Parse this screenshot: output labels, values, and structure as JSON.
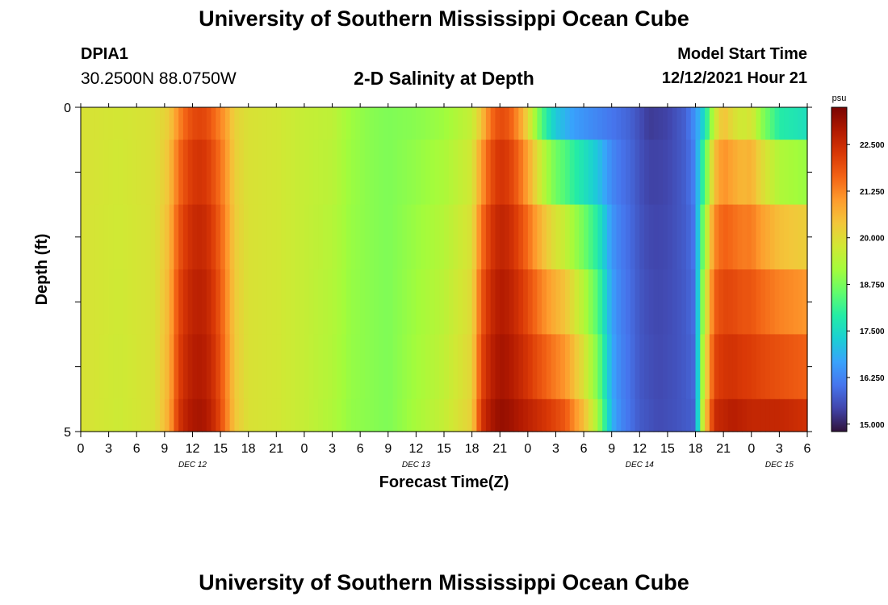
{
  "header": {
    "title": "University of Southern Mississippi Ocean Cube",
    "station_id": "DPIA1",
    "coords": "30.2500N  88.0750W",
    "plot_title": "2-D Salinity at Depth",
    "model_start_label": "Model Start Time",
    "model_start_value": "12/12/2021 Hour 21"
  },
  "footer": {
    "title": "University of Southern Mississippi Ocean Cube"
  },
  "colors": {
    "palette": [
      "#30123b",
      "#4145ab",
      "#4675ed",
      "#39a2fc",
      "#1bcfd4",
      "#24eca6",
      "#61fc6c",
      "#a4fc3b",
      "#d1e834",
      "#f3c63a",
      "#fe9b2d",
      "#f36315",
      "#d93806",
      "#b11901",
      "#7a0402"
    ]
  },
  "chart_data": {
    "type": "heatmap",
    "title": "2-D Salinity at Depth",
    "xlabel": "Forecast Time(Z)",
    "ylabel": "Depth (ft)",
    "colorbar_unit": "psu",
    "colorbar_range": [
      14.8,
      23.5
    ],
    "colorbar_ticks": [
      "22.500",
      "21.250",
      "20.000",
      "18.750",
      "17.500",
      "16.250",
      "15.000"
    ],
    "colorbar_tick_values": [
      22.5,
      21.25,
      20.0,
      18.75,
      17.5,
      16.25,
      15.0
    ],
    "x_tick_labels": [
      "0",
      "3",
      "6",
      "9",
      "12",
      "15",
      "18",
      "21",
      "0",
      "3",
      "6",
      "9",
      "12",
      "15",
      "18",
      "21",
      "0",
      "3",
      "6",
      "9",
      "12",
      "15",
      "18",
      "21",
      "0",
      "3",
      "6"
    ],
    "x_range_hours": [
      0,
      78
    ],
    "date_labels": [
      "DEC 12",
      "DEC 13",
      "DEC 14",
      "DEC 15"
    ],
    "date_label_hours": [
      12,
      36,
      60,
      75
    ],
    "y_tick_labels": [
      "0",
      "5"
    ],
    "y_range": [
      0,
      5
    ],
    "depth_band_bounds": [
      0,
      0.5,
      1.5,
      2.5,
      3.5,
      4.5,
      5
    ],
    "surface_anchors": [
      [
        0,
        19.9
      ],
      [
        4,
        19.8
      ],
      [
        8,
        19.9
      ],
      [
        9.5,
        20.3
      ],
      [
        10.5,
        21.2
      ],
      [
        11.5,
        21.8
      ],
      [
        12.5,
        22.1
      ],
      [
        13.5,
        22.0
      ],
      [
        14.5,
        21.5
      ],
      [
        15.5,
        21.0
      ],
      [
        16.5,
        20.2
      ],
      [
        18,
        19.9
      ],
      [
        21,
        19.8
      ],
      [
        24,
        19.6
      ],
      [
        27,
        19.5
      ],
      [
        29,
        19.1
      ],
      [
        31,
        18.9
      ],
      [
        33,
        18.8
      ],
      [
        36,
        18.9
      ],
      [
        39,
        19.1
      ],
      [
        42,
        19.6
      ],
      [
        43,
        20.4
      ],
      [
        44,
        21.5
      ],
      [
        45,
        22.0
      ],
      [
        46,
        21.8
      ],
      [
        47,
        21.1
      ],
      [
        48,
        20.1
      ],
      [
        49,
        18.9
      ],
      [
        50,
        17.9
      ],
      [
        51,
        17.2
      ],
      [
        53,
        16.6
      ],
      [
        56,
        16.2
      ],
      [
        59,
        15.8
      ],
      [
        61,
        15.3
      ],
      [
        63,
        15.4
      ],
      [
        65,
        15.8
      ],
      [
        66,
        16.5
      ],
      [
        67,
        17.6
      ],
      [
        68,
        19.6
      ],
      [
        69,
        20.5
      ],
      [
        70,
        20.0
      ],
      [
        71,
        19.7
      ],
      [
        72,
        19.9
      ],
      [
        73,
        19.0
      ],
      [
        75,
        17.9
      ],
      [
        78,
        17.6
      ]
    ],
    "bottom_anchors": [
      [
        0,
        19.9
      ],
      [
        4,
        19.7
      ],
      [
        8,
        19.9
      ],
      [
        9.5,
        20.8
      ],
      [
        10.5,
        22.3
      ],
      [
        11.5,
        22.8
      ],
      [
        12.5,
        23.0
      ],
      [
        13.5,
        22.9
      ],
      [
        14.5,
        22.4
      ],
      [
        15.5,
        21.5
      ],
      [
        16.5,
        20.4
      ],
      [
        18,
        19.9
      ],
      [
        21,
        19.8
      ],
      [
        24,
        19.6
      ],
      [
        27,
        19.3
      ],
      [
        29,
        19.0
      ],
      [
        31,
        18.9
      ],
      [
        33,
        18.8
      ],
      [
        36,
        19.2
      ],
      [
        39,
        19.6
      ],
      [
        42,
        20.2
      ],
      [
        43,
        22.3
      ],
      [
        44,
        22.9
      ],
      [
        45,
        23.2
      ],
      [
        46,
        23.1
      ],
      [
        48,
        22.7
      ],
      [
        50,
        22.3
      ],
      [
        52,
        21.8
      ],
      [
        54,
        20.5
      ],
      [
        55.5,
        19.2
      ],
      [
        57,
        16.9
      ],
      [
        58,
        16.3
      ],
      [
        60,
        15.7
      ],
      [
        62,
        15.5
      ],
      [
        64,
        15.6
      ],
      [
        66,
        15.8
      ],
      [
        66.5,
        18.9
      ],
      [
        67,
        20.2
      ],
      [
        68,
        22.5
      ],
      [
        70,
        22.8
      ],
      [
        72,
        22.6
      ],
      [
        75,
        22.6
      ],
      [
        78,
        22.4
      ]
    ],
    "band_depth_weights": [
      0,
      0.3,
      0.55,
      0.72,
      0.85,
      1.0
    ]
  }
}
